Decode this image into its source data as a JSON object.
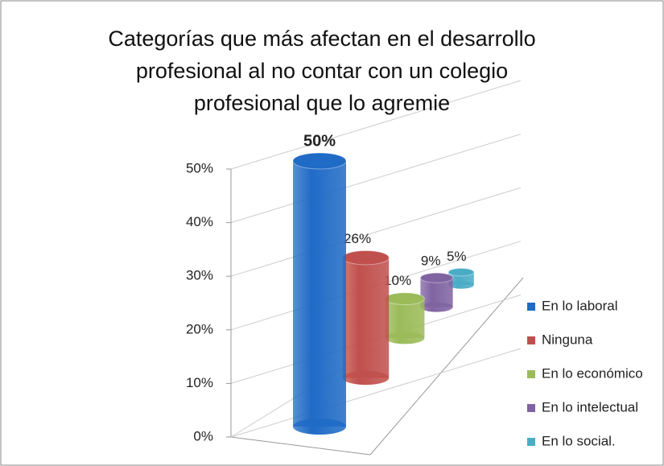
{
  "chart_data": {
    "type": "bar3d",
    "title": "Categorías que más afectan en el desarrollo profesional al no contar con un colegio profesional que lo agremie",
    "categories": [
      "En lo laboral",
      "Ninguna",
      "En lo económico",
      "En lo intelectual",
      "En lo social."
    ],
    "values": [
      50,
      26,
      10,
      9,
      5
    ],
    "value_labels": [
      "50%",
      "26%",
      "10%",
      "9%",
      "5%"
    ],
    "colors": [
      "#1f6bc6",
      "#c0504d",
      "#9bbb59",
      "#8064a2",
      "#4bacc6"
    ],
    "ylim": [
      0,
      50
    ],
    "yticks": [
      {
        "value": 0,
        "label": "0%"
      },
      {
        "value": 10,
        "label": "10%"
      },
      {
        "value": 20,
        "label": "20%"
      },
      {
        "value": 30,
        "label": "30%"
      },
      {
        "value": 40,
        "label": "40%"
      },
      {
        "value": 50,
        "label": "50%"
      }
    ],
    "grid": true,
    "legend": "right"
  }
}
